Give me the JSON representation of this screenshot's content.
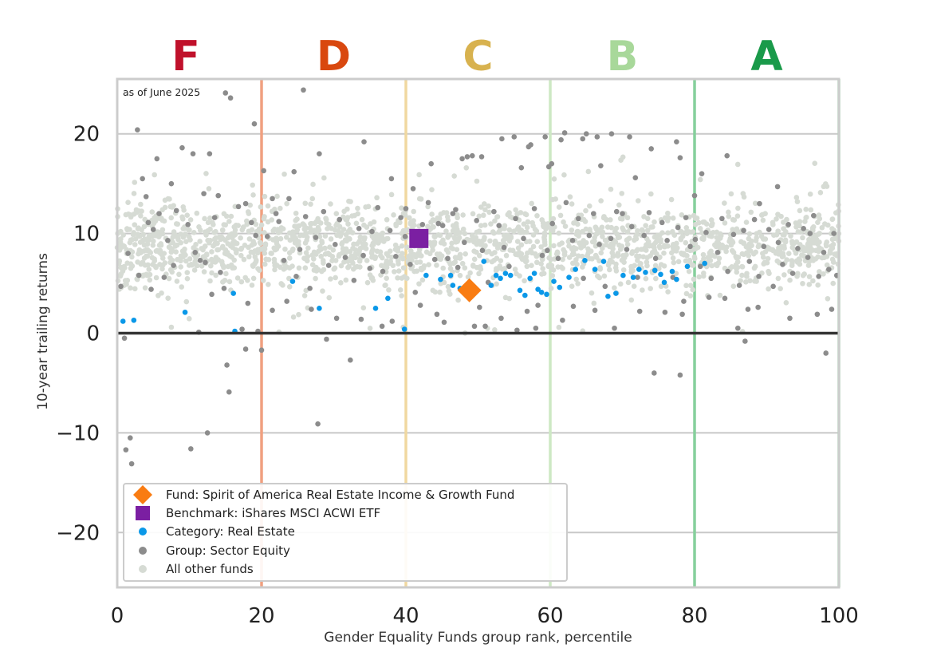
{
  "chart_data": {
    "type": "scatter",
    "title": "",
    "xlabel": "Gender Equality Funds group rank, percentile",
    "ylabel": "10-year trailing returns",
    "xlim": [
      0,
      100
    ],
    "ylim": [
      -25.5,
      25.5
    ],
    "x_ticks": [
      "0",
      "20",
      "40",
      "60",
      "80",
      "100"
    ],
    "y_ticks": [
      "20",
      "10",
      "0",
      "−10",
      "−20"
    ],
    "grid": "horizontal",
    "legend_position": "bottom-left",
    "note": "as of June 2025",
    "grades": [
      {
        "label": "F",
        "x_center": 9.5,
        "color": "#c0112b"
      },
      {
        "label": "D",
        "x_center": 30,
        "color": "#d9480f"
      },
      {
        "label": "C",
        "x_center": 50,
        "color": "#d8b24f"
      },
      {
        "label": "B",
        "x_center": 70,
        "color": "#a8d89a"
      },
      {
        "label": "A",
        "x_center": 90,
        "color": "#1a9a4a"
      }
    ],
    "boundaries": [
      {
        "x": 20,
        "color": "#f0a080"
      },
      {
        "x": 40,
        "color": "#f0d8a0"
      },
      {
        "x": 60,
        "color": "#cde8c4"
      },
      {
        "x": 80,
        "color": "#86cf9c"
      },
      {
        "x": 100,
        "color": "#a6d9b4"
      }
    ],
    "series": [
      {
        "name": "Fund: Spirit of America Real Estate Income & Growth Fund",
        "marker": "diamond",
        "color": "#f97c12",
        "points": [
          [
            48.8,
            4.3
          ]
        ]
      },
      {
        "name": "Benchmark: iShares MSCI ACWI ETF",
        "marker": "square",
        "color": "#7b1fa2",
        "points": [
          [
            41.8,
            9.5
          ]
        ]
      },
      {
        "name": "Category: Real Estate",
        "marker": "circle",
        "color": "#0a98e8",
        "points": [
          [
            0.8,
            1.2
          ],
          [
            2.3,
            1.3
          ],
          [
            9.4,
            2.1
          ],
          [
            16.1,
            4
          ],
          [
            16.3,
            0.2
          ],
          [
            24.3,
            5.2
          ],
          [
            28,
            2.5
          ],
          [
            35.8,
            2.5
          ],
          [
            37.5,
            3.5
          ],
          [
            39.8,
            0.4
          ],
          [
            42.8,
            5.8
          ],
          [
            44.8,
            5.4
          ],
          [
            46.2,
            5.8
          ],
          [
            46.5,
            4.8
          ],
          [
            47.5,
            4.5
          ],
          [
            50.8,
            7.2
          ],
          [
            51.8,
            4.8
          ],
          [
            52.5,
            5.8
          ],
          [
            53.1,
            5.5
          ],
          [
            53.8,
            6
          ],
          [
            54.5,
            5.8
          ],
          [
            55.8,
            4.3
          ],
          [
            56.5,
            3.8
          ],
          [
            57.2,
            5.5
          ],
          [
            57.8,
            6
          ],
          [
            58.3,
            4.4
          ],
          [
            58.8,
            4.1
          ],
          [
            59.5,
            3.9
          ],
          [
            60.5,
            5.2
          ],
          [
            61.3,
            4.6
          ],
          [
            62.6,
            5.6
          ],
          [
            63.5,
            6.4
          ],
          [
            64.8,
            7.3
          ],
          [
            66.2,
            6.4
          ],
          [
            67.4,
            7.2
          ],
          [
            68,
            3.7
          ],
          [
            69.1,
            4
          ],
          [
            70.1,
            5.8
          ],
          [
            71.5,
            5.6
          ],
          [
            72.3,
            6.4
          ],
          [
            73.2,
            6.1
          ],
          [
            74.5,
            6.3
          ],
          [
            75.3,
            5.9
          ],
          [
            75.8,
            5.1
          ],
          [
            76.9,
            6.2
          ],
          [
            77.5,
            5.4
          ],
          [
            79,
            6.7
          ],
          [
            81.4,
            7
          ]
        ]
      },
      {
        "name": "Group: Sector Equity",
        "marker": "circle",
        "color": "#8c8c8c",
        "points": [
          [
            1,
            -0.5
          ],
          [
            1.2,
            -11.7
          ],
          [
            1.8,
            -10.5
          ],
          [
            2,
            -13.1
          ],
          [
            2.8,
            20.4
          ],
          [
            3.5,
            15.5
          ],
          [
            5.5,
            17.5
          ],
          [
            7.5,
            15
          ],
          [
            9,
            18.6
          ],
          [
            10.2,
            -11.6
          ],
          [
            10.5,
            18
          ],
          [
            12.5,
            -10
          ],
          [
            12.8,
            18
          ],
          [
            14,
            13.8
          ],
          [
            15,
            24.1
          ],
          [
            15.7,
            23.6
          ],
          [
            15.2,
            -3.2
          ],
          [
            15.5,
            -5.9
          ],
          [
            17.3,
            0.4
          ],
          [
            17.8,
            -1.6
          ],
          [
            19,
            21
          ],
          [
            19.5,
            0.2
          ],
          [
            20,
            -1.7
          ],
          [
            20.3,
            16.3
          ],
          [
            22,
            12
          ],
          [
            24.5,
            16.2
          ],
          [
            25.8,
            24.4
          ],
          [
            27.8,
            -9.1
          ],
          [
            28,
            18
          ],
          [
            29,
            -0.6
          ],
          [
            32.3,
            -2.7
          ],
          [
            34.2,
            19.2
          ],
          [
            35,
            6.5
          ],
          [
            38,
            15.5
          ],
          [
            40,
            12.5
          ],
          [
            41,
            14.5
          ],
          [
            43.5,
            17
          ],
          [
            44.5,
            11
          ],
          [
            46.5,
            12
          ],
          [
            47.8,
            17.5
          ],
          [
            48.5,
            17.7
          ],
          [
            49.2,
            17.8
          ],
          [
            49.5,
            0.7
          ],
          [
            50.5,
            17.7
          ],
          [
            51,
            0.7
          ],
          [
            53.3,
            19.5
          ],
          [
            55,
            19.7
          ],
          [
            55.4,
            0.3
          ],
          [
            56,
            16.6
          ],
          [
            57,
            18.7
          ],
          [
            57.3,
            18.9
          ],
          [
            58.3,
            2.8
          ],
          [
            59.3,
            19.7
          ],
          [
            59.8,
            16.7
          ],
          [
            60.2,
            17
          ],
          [
            61.5,
            19.4
          ],
          [
            62,
            20.1
          ],
          [
            64.5,
            19.5
          ],
          [
            65,
            20
          ],
          [
            66.5,
            19.7
          ],
          [
            67,
            16.8
          ],
          [
            68.5,
            20
          ],
          [
            70,
            12
          ],
          [
            71,
            19.7
          ],
          [
            71.8,
            15.6
          ],
          [
            74,
            18.5
          ],
          [
            74.4,
            -4
          ],
          [
            77.5,
            19.2
          ],
          [
            78,
            17.6
          ],
          [
            78,
            -4.2
          ],
          [
            78.5,
            3.2
          ],
          [
            80,
            13.8
          ],
          [
            81,
            16
          ],
          [
            84.5,
            17.8
          ],
          [
            86,
            0.5
          ],
          [
            87,
            -0.8
          ],
          [
            89,
            13
          ],
          [
            91.5,
            14.7
          ],
          [
            96,
            10
          ],
          [
            98.2,
            -2
          ],
          [
            99,
            2.4
          ],
          [
            0.5,
            4.7
          ],
          [
            1.5,
            8
          ],
          [
            3,
            5.8
          ],
          [
            4,
            13.7
          ],
          [
            4.3,
            11.1
          ],
          [
            5,
            10.4
          ],
          [
            5.8,
            12
          ],
          [
            6.5,
            5.6
          ],
          [
            7,
            9.3
          ],
          [
            7.8,
            6.8
          ],
          [
            8.2,
            12.3
          ],
          [
            9.8,
            10.9
          ],
          [
            10.8,
            8.1
          ],
          [
            11.5,
            7.3
          ],
          [
            12,
            14
          ],
          [
            12.2,
            7.1
          ],
          [
            13.5,
            11.6
          ],
          [
            14.3,
            6.1
          ],
          [
            14.8,
            4.5
          ],
          [
            16.8,
            12.7
          ],
          [
            17.8,
            13
          ],
          [
            18.6,
            11.1
          ],
          [
            19.2,
            9.8
          ],
          [
            20.8,
            9.7
          ],
          [
            21.5,
            13.5
          ],
          [
            22.4,
            11.2
          ],
          [
            23.1,
            7.3
          ],
          [
            23.8,
            13.5
          ],
          [
            24.8,
            5.7
          ],
          [
            25.3,
            8.4
          ],
          [
            26.1,
            11.7
          ],
          [
            26.7,
            4.5
          ],
          [
            27.5,
            9.6
          ],
          [
            28.6,
            12.2
          ],
          [
            29.3,
            6.8
          ],
          [
            30.2,
            8.9
          ],
          [
            30.8,
            11.4
          ],
          [
            31.6,
            7.6
          ],
          [
            32.8,
            5.3
          ],
          [
            33.5,
            10.5
          ],
          [
            34.1,
            7.8
          ],
          [
            35.3,
            10.2
          ],
          [
            36.1,
            12.6
          ],
          [
            36.8,
            6.2
          ],
          [
            37.8,
            10.3
          ],
          [
            38.6,
            7.7
          ],
          [
            39.3,
            11.6
          ],
          [
            39.9,
            9.7
          ],
          [
            40.6,
            6.9
          ],
          [
            41.3,
            4.1
          ],
          [
            42.3,
            10.9
          ],
          [
            43.1,
            13.1
          ],
          [
            44,
            7.4
          ],
          [
            45.1,
            10.8
          ],
          [
            45.8,
            7.5
          ],
          [
            46.9,
            12.4
          ],
          [
            47.2,
            6.6
          ],
          [
            48.1,
            9.1
          ],
          [
            49.8,
            11.3
          ],
          [
            50.6,
            8.3
          ],
          [
            51.4,
            5.1
          ],
          [
            52.2,
            12.2
          ],
          [
            52.9,
            10.8
          ],
          [
            53.6,
            8.6
          ],
          [
            54.3,
            6.7
          ],
          [
            55.2,
            11.5
          ],
          [
            56.3,
            9.5
          ],
          [
            57.8,
            12.5
          ],
          [
            58.9,
            7.8
          ],
          [
            59.6,
            8.3
          ],
          [
            60.3,
            11
          ],
          [
            61.1,
            7.5
          ],
          [
            62.2,
            13.1
          ],
          [
            63.1,
            9.3
          ],
          [
            63.9,
            11.5
          ],
          [
            64.6,
            5.5
          ],
          [
            65.4,
            9.8
          ],
          [
            66,
            12
          ],
          [
            66.8,
            8.9
          ],
          [
            67.6,
            4.7
          ],
          [
            68.4,
            9.5
          ],
          [
            69.2,
            12.2
          ],
          [
            70.6,
            8.4
          ],
          [
            71.3,
            10.7
          ],
          [
            72.1,
            5.6
          ],
          [
            73,
            9.8
          ],
          [
            73.7,
            12.1
          ],
          [
            74.6,
            7.5
          ],
          [
            75.5,
            11.1
          ],
          [
            76.2,
            9.3
          ],
          [
            77,
            5.6
          ],
          [
            77.7,
            10.6
          ],
          [
            78.8,
            11.6
          ],
          [
            79.4,
            8.7
          ],
          [
            80.1,
            9.4
          ],
          [
            80.8,
            6.7
          ],
          [
            81.6,
            10.1
          ],
          [
            82.3,
            5.5
          ],
          [
            83.2,
            8.1
          ],
          [
            83.8,
            11.5
          ],
          [
            84.6,
            6.2
          ],
          [
            85.4,
            9.9
          ],
          [
            86.2,
            4.8
          ],
          [
            86.8,
            10.3
          ],
          [
            87.6,
            7.2
          ],
          [
            88.3,
            11.4
          ],
          [
            88.9,
            5.7
          ],
          [
            89.6,
            8.7
          ],
          [
            90.3,
            10.4
          ],
          [
            90.9,
            4.7
          ],
          [
            91.6,
            9.1
          ],
          [
            92.2,
            6.9
          ],
          [
            93,
            10.9
          ],
          [
            93.6,
            6
          ],
          [
            94.3,
            8.5
          ],
          [
            95.1,
            10.5
          ],
          [
            95.7,
            7.6
          ],
          [
            96.5,
            11.8
          ],
          [
            97.2,
            5.7
          ],
          [
            97.9,
            8.1
          ],
          [
            98.6,
            6.4
          ],
          [
            99.3,
            10
          ],
          [
            99.7,
            5.8
          ],
          [
            82,
            3.6
          ],
          [
            84.2,
            3.5
          ],
          [
            87.4,
            2.4
          ],
          [
            88.8,
            2.6
          ],
          [
            93.2,
            1.5
          ],
          [
            97,
            1.9
          ],
          [
            42,
            2.8
          ],
          [
            44.3,
            1.9
          ],
          [
            45.3,
            1.1
          ],
          [
            50.2,
            2.6
          ],
          [
            53.2,
            1.5
          ],
          [
            56.8,
            2.2
          ],
          [
            58,
            0.5
          ],
          [
            61.7,
            1.3
          ],
          [
            63.2,
            2.7
          ],
          [
            66.2,
            2.3
          ],
          [
            68.9,
            0.5
          ],
          [
            72.4,
            2.2
          ],
          [
            75.9,
            2.1
          ],
          [
            78.3,
            1.9
          ],
          [
            30.4,
            1.5
          ],
          [
            33.8,
            1.4
          ],
          [
            36.7,
            0.7
          ],
          [
            38.1,
            1.2
          ],
          [
            26.9,
            2.4
          ],
          [
            23.5,
            3.2
          ],
          [
            21.5,
            2.3
          ],
          [
            18.1,
            3
          ],
          [
            13.1,
            3.9
          ],
          [
            11.3,
            0.1
          ],
          [
            4.7,
            4.4
          ]
        ]
      },
      {
        "name": "All other funds",
        "marker": "circle",
        "color": "#d6dbd4",
        "points": []
      }
    ],
    "background_cloud": {
      "series": "All other funds",
      "x_range": [
        0,
        100
      ],
      "y_center": 8.8,
      "y_spread": 3.3
    }
  }
}
